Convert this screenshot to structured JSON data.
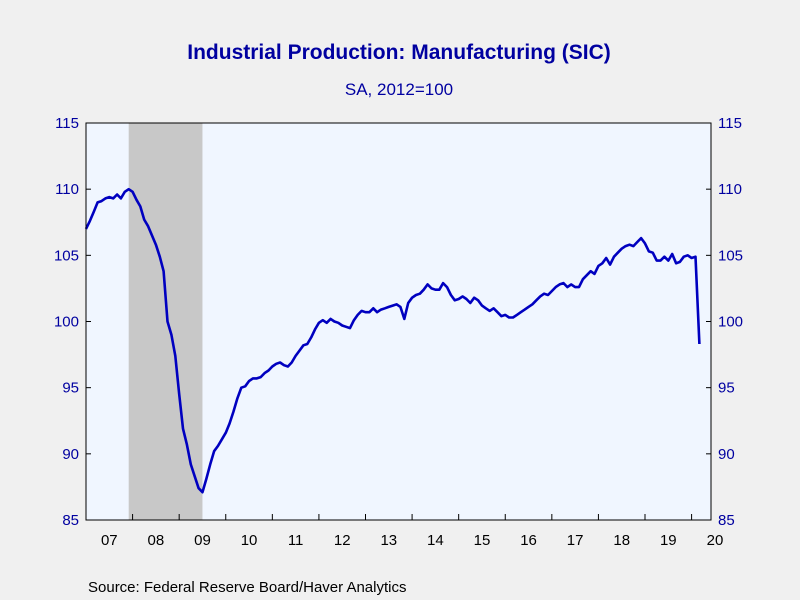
{
  "chart_data": {
    "type": "line",
    "title": "Industrial Production: Manufacturing (SIC)",
    "subtitle": "SA, 2012=100",
    "source": "Source:  Federal Reserve Board/Haver Analytics",
    "ylim": [
      85,
      115
    ],
    "yticks": [
      "115",
      "110",
      "105",
      "100",
      "95",
      "90",
      "85"
    ],
    "xticks": [
      "07",
      "08",
      "09",
      "10",
      "11",
      "12",
      "13",
      "14",
      "15",
      "16",
      "17",
      "18",
      "19",
      "20"
    ],
    "x_start": "2007-01",
    "x_range": [
      "2007-01",
      "2020-06"
    ],
    "recession": {
      "start": "2007-12",
      "end": "2009-06"
    },
    "colors": {
      "line": "#0000c0",
      "axis_text": "#0000a0",
      "recession": "#c8c8c8",
      "plot_bg": "#f0f6ff"
    },
    "series": [
      {
        "values": [
          107.0,
          107.6,
          108.3,
          109.0,
          109.1,
          109.3,
          109.4,
          109.3,
          109.6,
          109.3,
          109.8,
          110.0,
          109.8,
          109.2,
          108.7,
          107.7,
          107.2,
          106.5,
          105.8,
          104.9,
          103.8,
          100.0,
          99.0,
          97.4,
          94.5,
          91.9,
          90.7,
          89.2,
          88.3,
          87.4,
          87.1,
          88.1,
          89.2,
          90.2,
          90.6,
          91.1,
          91.6,
          92.3,
          93.2,
          94.2,
          95.0,
          95.1,
          95.5,
          95.7,
          95.7,
          95.8,
          96.1,
          96.3,
          96.6,
          96.8,
          96.9,
          96.7,
          96.6,
          96.9,
          97.4,
          97.8,
          98.2,
          98.3,
          98.8,
          99.4,
          99.9,
          100.1,
          99.9,
          100.2,
          100.0,
          99.9,
          99.7,
          99.6,
          99.5,
          100.1,
          100.5,
          100.8,
          100.7,
          100.7,
          101.0,
          100.7,
          100.9,
          101.0,
          101.1,
          101.2,
          101.3,
          101.1,
          100.2,
          101.4,
          101.8,
          102.0,
          102.1,
          102.4,
          102.8,
          102.5,
          102.4,
          102.4,
          102.9,
          102.6,
          102.0,
          101.6,
          101.7,
          101.9,
          101.7,
          101.4,
          101.8,
          101.6,
          101.2,
          101.0,
          100.8,
          101.0,
          100.7,
          100.4,
          100.5,
          100.3,
          100.3,
          100.5,
          100.7,
          100.9,
          101.1,
          101.3,
          101.6,
          101.9,
          102.1,
          102.0,
          102.3,
          102.6,
          102.8,
          102.9,
          102.6,
          102.8,
          102.6,
          102.6,
          103.2,
          103.5,
          103.8,
          103.6,
          104.2,
          104.4,
          104.8,
          104.3,
          104.9,
          105.2,
          105.5,
          105.7,
          105.8,
          105.7,
          106.0,
          106.3,
          105.9,
          105.3,
          105.2,
          104.6,
          104.6,
          104.9,
          104.6,
          105.1,
          104.4,
          104.5,
          104.9,
          105.0,
          104.8,
          104.9,
          98.3
        ]
      }
    ]
  }
}
